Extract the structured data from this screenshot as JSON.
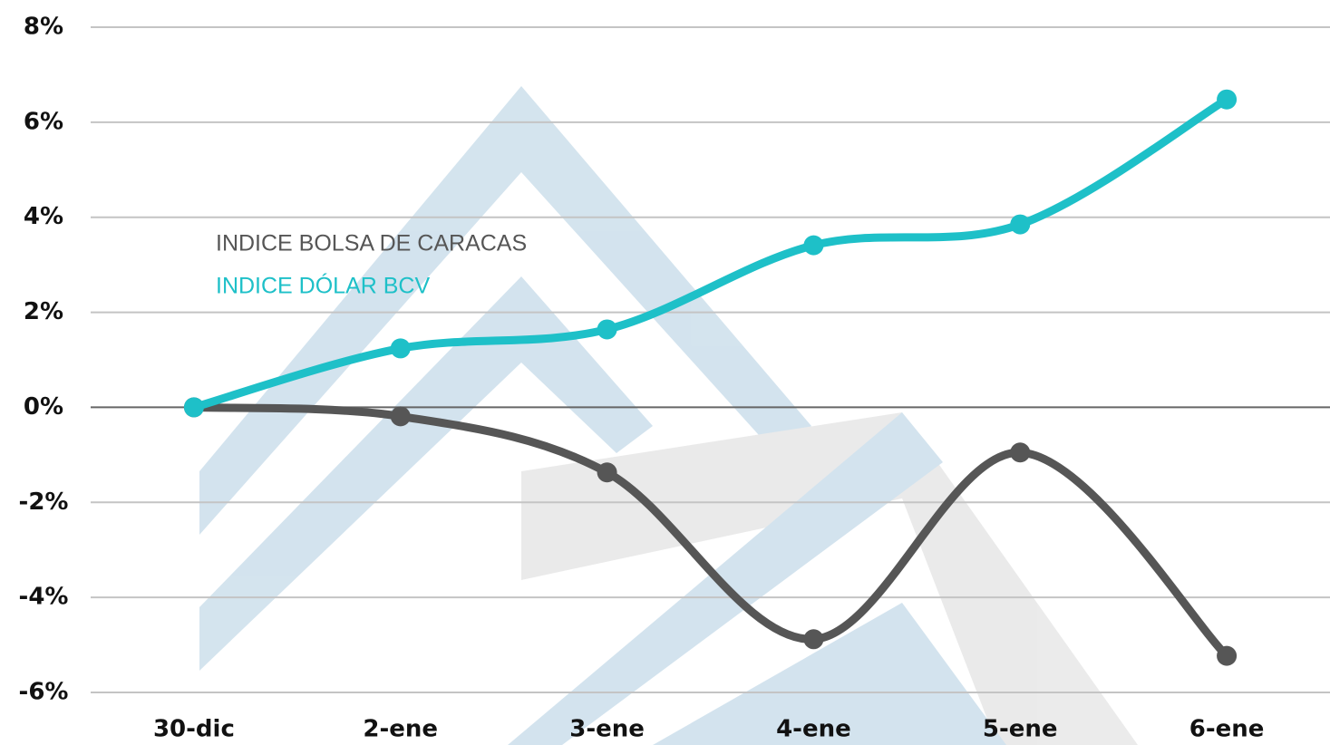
{
  "chart_data": {
    "type": "line",
    "categories": [
      "30-dic",
      "2-ene",
      "3-ene",
      "4-ene",
      "5-ene",
      "6-ene"
    ],
    "series": [
      {
        "name": "INDICE BOLSA DE CARACAS",
        "color": "#565656",
        "values": [
          0,
          -0.19,
          -1.37,
          -4.88,
          -0.95,
          -5.23
        ]
      },
      {
        "name": "INDICE DÓLAR BCV",
        "color": "#1ec0c8",
        "values": [
          0,
          1.24,
          1.64,
          3.41,
          3.85,
          6.48
        ]
      }
    ],
    "ylim": [
      -6,
      8
    ],
    "yticks": [
      {
        "value": -6,
        "label": "-6%"
      },
      {
        "value": -4,
        "label": "-4%"
      },
      {
        "value": -2,
        "label": "-2%"
      },
      {
        "value": 0,
        "label": "0%"
      },
      {
        "value": 2,
        "label": "2%"
      },
      {
        "value": 4,
        "label": "4%"
      },
      {
        "value": 6,
        "label": "6%"
      },
      {
        "value": 8,
        "label": "8%"
      }
    ],
    "grid": true
  }
}
